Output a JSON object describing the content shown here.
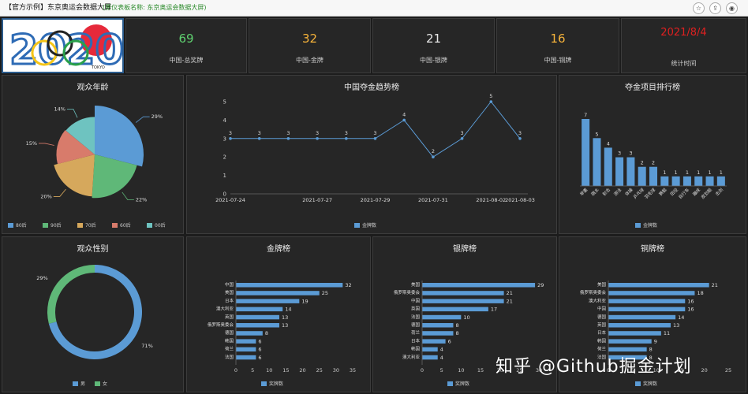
{
  "topbar": {
    "tag": "【官方示例】东京奥运会数据大屏",
    "subtitle": "(原仪表板名称: 东京奥运会数据大屏)"
  },
  "logo": {
    "year_text": "2020",
    "tag_text": "TOKYO"
  },
  "kpis": [
    {
      "value": "69",
      "label": "中国-总奖牌",
      "color": "#5fd070"
    },
    {
      "value": "32",
      "label": "中国-金牌",
      "color": "#f5b23a"
    },
    {
      "value": "21",
      "label": "中国-银牌",
      "color": "#e6e6e6"
    },
    {
      "value": "16",
      "label": "中国-铜牌",
      "color": "#f5b23a"
    },
    {
      "value": "2021/8/4",
      "label": "统计时间",
      "color": "#e02020"
    }
  ],
  "watermark": "知乎 @Github掘金计划",
  "chart_data": [
    {
      "id": "age",
      "type": "pie",
      "title": "观众年龄",
      "categories": [
        "80后",
        "90后",
        "70后",
        "60后",
        "00后"
      ],
      "values": [
        29,
        22,
        20,
        15,
        14
      ],
      "labels": [
        "29%",
        "22%",
        "20%",
        "15%",
        "14%"
      ],
      "colors": [
        "#5b9bd5",
        "#5fb878",
        "#d6a85c",
        "#d87b6b",
        "#6ec3c0"
      ],
      "legend": "bottom"
    },
    {
      "id": "trend",
      "type": "line",
      "title": "中国夺金趋势榜",
      "x": [
        "2021-07-24",
        "2021-07-25",
        "2021-07-26",
        "2021-07-27",
        "2021-07-28",
        "2021-07-29",
        "2021-07-30",
        "2021-07-31",
        "2021-08-01",
        "2021-08-02",
        "2021-08-03"
      ],
      "xticks": [
        "2021-07-24",
        "2021-07-27",
        "2021-07-29",
        "2021-07-31",
        "2021-08-02",
        "2021-08-03"
      ],
      "values": [
        3,
        3,
        3,
        3,
        3,
        3,
        4,
        2,
        3,
        5,
        3
      ],
      "ylim": [
        0,
        5
      ],
      "yticks": [
        0,
        1,
        2,
        3,
        4,
        5
      ],
      "legend_name": "金牌数",
      "color": "#5b9bd5"
    },
    {
      "id": "events",
      "type": "bar",
      "title": "夺金项目排行榜",
      "categories": [
        "举重",
        "跳水",
        "射击",
        "游泳",
        "体操",
        "乒乓球",
        "羽毛球",
        "赛艇",
        "田径",
        "自行车",
        "蹦床",
        "皮划艇",
        "击剑"
      ],
      "values": [
        7,
        5,
        4,
        3,
        3,
        2,
        2,
        1,
        1,
        1,
        1,
        1,
        1
      ],
      "ylim": [
        0,
        7
      ],
      "legend_name": "金牌数",
      "color": "#5b9bd5"
    },
    {
      "id": "gender",
      "type": "pie",
      "title": "观众性别",
      "categories": [
        "男",
        "女"
      ],
      "values": [
        71,
        29
      ],
      "labels": [
        "71%",
        "29%"
      ],
      "colors": [
        "#5b9bd5",
        "#5fb878"
      ],
      "legend": "bottom"
    },
    {
      "id": "gold",
      "type": "bar",
      "orientation": "horizontal",
      "title": "金牌榜",
      "categories": [
        "中国",
        "美国",
        "日本",
        "澳大利亚",
        "英国",
        "俄罗斯奥委会",
        "德国",
        "韩国",
        "荷兰",
        "法国"
      ],
      "values": [
        32,
        25,
        19,
        14,
        13,
        13,
        8,
        6,
        6,
        6
      ],
      "xticks": [
        0,
        5,
        10,
        15,
        20,
        25,
        30,
        35
      ],
      "xlim": [
        0,
        35
      ],
      "legend_name": "奖牌数",
      "color": "#5b9bd5"
    },
    {
      "id": "silver",
      "type": "bar",
      "orientation": "horizontal",
      "title": "银牌榜",
      "categories": [
        "美国",
        "俄罗斯奥委会",
        "中国",
        "英国",
        "法国",
        "德国",
        "荷兰",
        "日本",
        "韩国",
        "澳大利亚"
      ],
      "values": [
        29,
        21,
        21,
        17,
        10,
        8,
        8,
        6,
        4,
        4
      ],
      "xticks": [
        0,
        5,
        10,
        15,
        20,
        25,
        30
      ],
      "xlim": [
        0,
        30
      ],
      "legend_name": "奖牌数",
      "color": "#5b9bd5"
    },
    {
      "id": "bronze",
      "type": "bar",
      "orientation": "horizontal",
      "title": "铜牌榜",
      "categories": [
        "美国",
        "俄罗斯奥委会",
        "澳大利亚",
        "中国",
        "德国",
        "英国",
        "日本",
        "韩国",
        "荷兰",
        "法国"
      ],
      "values": [
        21,
        18,
        16,
        16,
        14,
        13,
        11,
        9,
        8,
        8
      ],
      "xticks": [
        0,
        5,
        10,
        15,
        20,
        25
      ],
      "xlim": [
        0,
        25
      ],
      "legend_name": "奖牌数",
      "color": "#5b9bd5"
    }
  ]
}
